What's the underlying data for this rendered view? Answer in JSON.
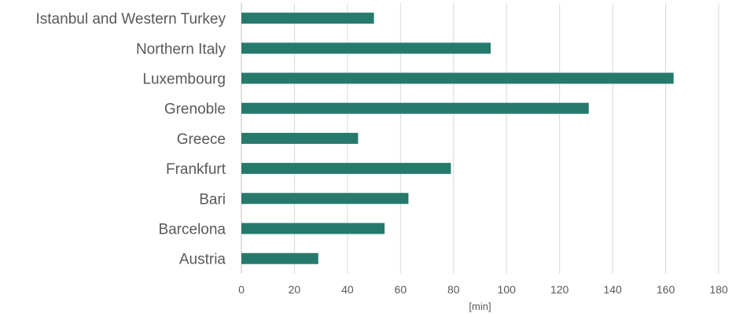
{
  "chart_data": {
    "type": "bar",
    "orientation": "horizontal",
    "categories": [
      "Istanbul and Western Turkey",
      "Northern Italy",
      "Luxembourg",
      "Grenoble",
      "Greece",
      "Frankfurt",
      "Bari",
      "Barcelona",
      "Austria"
    ],
    "values": [
      50,
      94,
      163,
      131,
      44,
      79,
      63,
      54,
      29
    ],
    "xlabel": "[min]",
    "xlim": [
      0,
      180
    ],
    "xticks": [
      0,
      20,
      40,
      60,
      80,
      100,
      120,
      140,
      160,
      180
    ],
    "grid": "vertical",
    "bar_color": "#267a6c"
  }
}
